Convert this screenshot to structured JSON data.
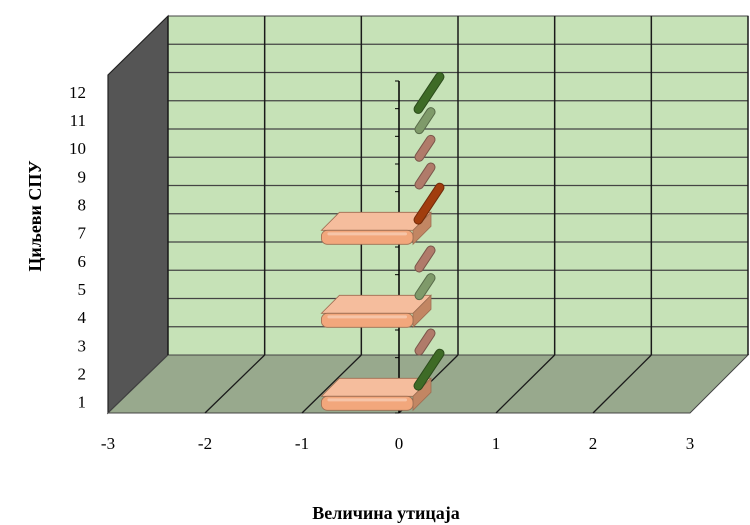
{
  "chart_data": {
    "type": "bar",
    "orientation": "horizontal",
    "style": "3d",
    "categories": [
      "1",
      "2",
      "3",
      "4",
      "5",
      "6",
      "7",
      "8",
      "9",
      "10",
      "11",
      "12"
    ],
    "values": [
      -0.8,
      0.3,
      0.1,
      -0.8,
      0.1,
      0.1,
      -0.8,
      0.3,
      0.1,
      0.1,
      0.1,
      0.3
    ],
    "bar_colors": [
      "#f2a77c",
      "#3e6b26",
      "#b07b6a",
      "#f2a77c",
      "#7f9a6a",
      "#b07b6a",
      "#f2a77c",
      "#a13d0e",
      "#b07b6a",
      "#b07b6a",
      "#7f9a6a",
      "#3e6b26"
    ],
    "xlim": [
      -3,
      3
    ],
    "x_ticks": [
      "-3",
      "-2",
      "-1",
      "0",
      "1",
      "2",
      "3"
    ],
    "xlabel": "Величина утицаја",
    "ylabel": "Циљеви СПУ",
    "grid": true,
    "colors": {
      "wall": "#c6e2b7",
      "floor": "#98a98d",
      "side_wall": "#555555",
      "grid": "#1a1a1a"
    }
  }
}
